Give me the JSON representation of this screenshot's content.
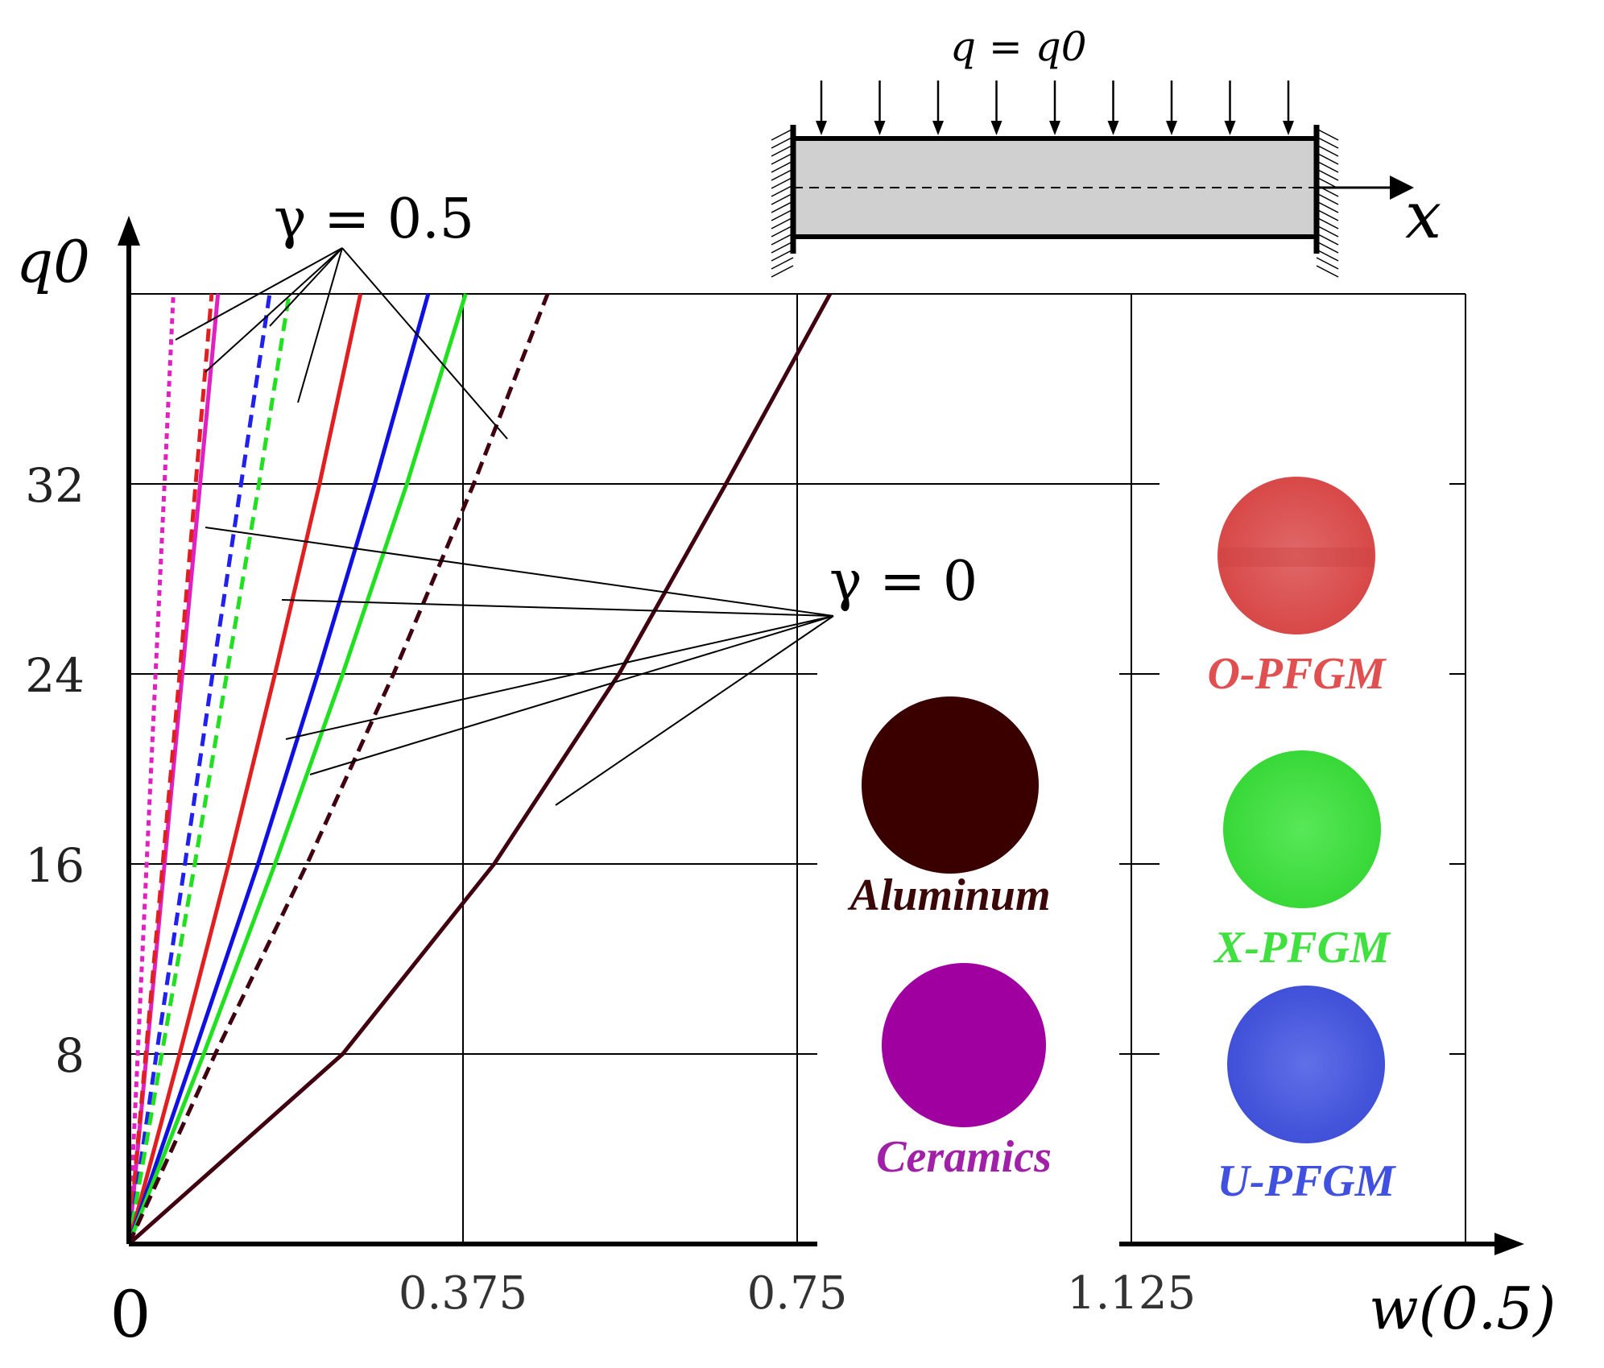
{
  "chart_data": {
    "type": "line",
    "xlabel": "w(0.5)",
    "ylabel": "q0",
    "xlim": [
      0,
      1.5
    ],
    "ylim": [
      0,
      40
    ],
    "x_ticks": [
      0,
      0.375,
      0.75,
      1.125
    ],
    "x_tick_labels": [
      "0",
      "0.375",
      "0.75",
      "1.125"
    ],
    "y_ticks": [
      8,
      16,
      24,
      32
    ],
    "y_tick_labels": [
      "8",
      "16",
      "24",
      "32"
    ],
    "grid": true,
    "annotations": {
      "gamma_half": "γ = 0.5",
      "gamma_zero": "γ = 0",
      "load": "q = q0",
      "axis_x": "x"
    },
    "series": [
      {
        "name": "Ceramics (γ = 0.5)",
        "color": "#e020c0",
        "dash": "dotted",
        "x": [
          0,
          0.01,
          0.02,
          0.03,
          0.04,
          0.05
        ],
        "y": [
          0,
          8.0,
          16.0,
          24.0,
          32.0,
          40.0
        ]
      },
      {
        "name": "Ceramics (γ = 0)",
        "color": "#e020c0",
        "dash": "solid",
        "x": [
          0,
          0.02,
          0.04,
          0.06,
          0.08,
          0.1
        ],
        "y": [
          0,
          8.0,
          16.0,
          24.0,
          32.0,
          40.0
        ]
      },
      {
        "name": "O-PFGM (γ = 0.5)",
        "color": "#e02020",
        "dash": "dashed",
        "x": [
          0,
          0.019,
          0.038,
          0.057,
          0.075,
          0.093
        ],
        "y": [
          0,
          8.0,
          16.0,
          24.0,
          32.0,
          40.0
        ]
      },
      {
        "name": "U-PFGM (γ = 0.5)",
        "color": "#2020f0",
        "dash": "dashed",
        "x": [
          0,
          0.031,
          0.063,
          0.094,
          0.126,
          0.158
        ],
        "y": [
          0,
          8.0,
          16.0,
          24.0,
          32.0,
          40.0
        ]
      },
      {
        "name": "X-PFGM (γ = 0.5)",
        "color": "#20e020",
        "dash": "dashed",
        "x": [
          0,
          0.037,
          0.074,
          0.11,
          0.146,
          0.18
        ],
        "y": [
          0,
          8.0,
          16.0,
          24.0,
          32.0,
          40.0
        ]
      },
      {
        "name": "O-PFGM (γ = 0)",
        "color": "#e02020",
        "dash": "solid",
        "x": [
          0,
          0.057,
          0.112,
          0.164,
          0.214,
          0.26
        ],
        "y": [
          0,
          8.0,
          16.0,
          24.0,
          32.0,
          40.0
        ]
      },
      {
        "name": "U-PFGM (γ = 0)",
        "color": "#1010e0",
        "dash": "solid",
        "x": [
          0,
          0.073,
          0.145,
          0.212,
          0.276,
          0.336
        ],
        "y": [
          0,
          8.0,
          16.0,
          24.0,
          32.0,
          40.0
        ]
      },
      {
        "name": "X-PFGM (γ = 0)",
        "color": "#20e020",
        "dash": "solid",
        "x": [
          0,
          0.084,
          0.164,
          0.24,
          0.312,
          0.378
        ],
        "y": [
          0,
          8.0,
          16.0,
          24.0,
          32.0,
          40.0
        ]
      },
      {
        "name": "Aluminum (γ = 0.5)",
        "color": "#400010",
        "dash": "dashed",
        "x": [
          0,
          0.097,
          0.2,
          0.297,
          0.387,
          0.47
        ],
        "y": [
          0,
          8.0,
          16.0,
          24.0,
          32.0,
          40.0
        ]
      },
      {
        "name": "Aluminum (γ = 0)",
        "color": "#400010",
        "dash": "solid",
        "x": [
          0,
          0.24,
          0.41,
          0.55,
          0.67,
          0.787
        ],
        "y": [
          0,
          8.0,
          16.0,
          24.0,
          32.0,
          40.0
        ]
      }
    ],
    "legend": [
      {
        "label": "Aluminum",
        "color": "#3a0000"
      },
      {
        "label": "Ceramics",
        "color": "#a000a0"
      },
      {
        "label": "O-PFGM",
        "color": "#e05050"
      },
      {
        "label": "X-PFGM",
        "color": "#40e040"
      },
      {
        "label": "U-PFGM",
        "color": "#4050e0"
      }
    ]
  }
}
